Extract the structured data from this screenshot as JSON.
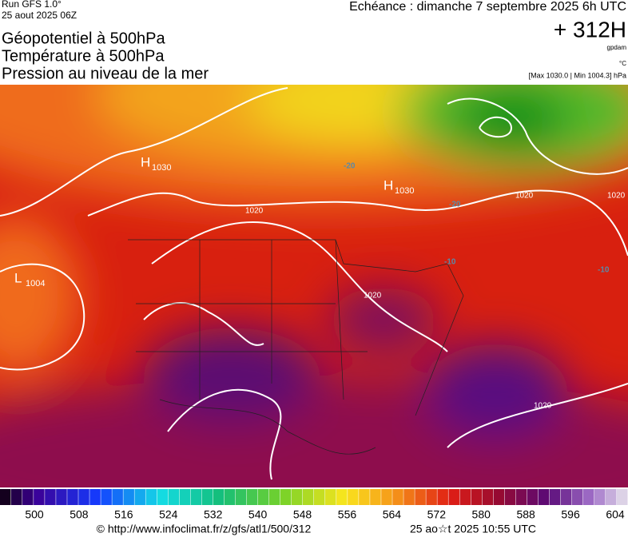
{
  "header": {
    "run": "Run GFS 1.0°",
    "run_date": "25 aout 2025 06Z",
    "fields": [
      "Géopotentiel à 500hPa",
      "Température à 500hPa",
      "Pression au niveau de la mer"
    ],
    "valid": "Echéance : dimanche 7 septembre 2025 6h UTC",
    "lead": "+ 312H",
    "unit_geo": "gpdam",
    "unit_temp": "°C",
    "pressure_range": "[Max 1030.0 | Min 1004.3] hPa"
  },
  "map": {
    "labels": [
      {
        "letter": "H",
        "value": "1030"
      },
      {
        "letter": "H",
        "value": "1030"
      },
      {
        "letter": "L",
        "value": "1004"
      }
    ],
    "isobars": [
      "1020",
      "1020",
      "1020",
      "1020",
      "1020"
    ],
    "isotherms": [
      "-20",
      "-20",
      "-10",
      "-10"
    ]
  },
  "colorbar": {
    "labels": [
      500,
      508,
      516,
      524,
      532,
      540,
      548,
      556,
      564,
      572,
      580,
      588,
      596,
      604
    ]
  },
  "footer": {
    "url": "© http://www.infoclimat.fr/z/gfs/atl1/500/312",
    "stamp": "25 ao☆t 2025 10:55 UTC"
  }
}
